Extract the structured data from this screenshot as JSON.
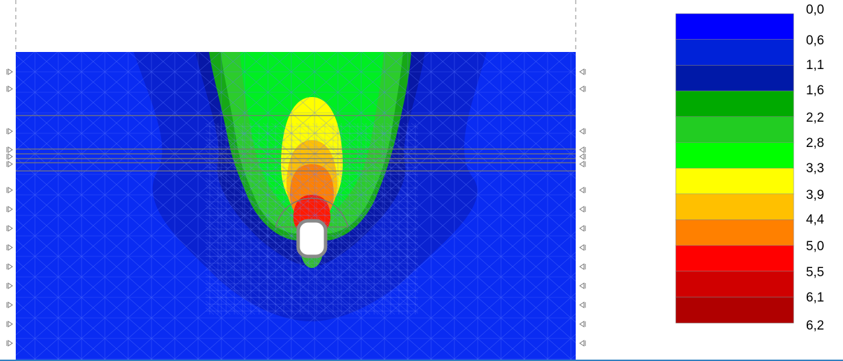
{
  "colors": {
    "background": "#ffffff",
    "soil_base": "#0b2cf0",
    "mesh_line": "#4f6cff",
    "layer_line": "#808080",
    "frame_line": "#2f7fbf"
  },
  "boundary_icons": [
    "fixed-support-left-icon",
    "fixed-support-right-icon"
  ],
  "legend": {
    "values": [
      "0,0",
      "0,6",
      "1,1",
      "1,6",
      "2,2",
      "2,8",
      "3,3",
      "3,9",
      "4,4",
      "5,0",
      "5,5",
      "6,1",
      "6,2"
    ],
    "colors": [
      "#0000ff",
      "#0022d8",
      "#0019a8",
      "#00aa00",
      "#22cc22",
      "#00ff00",
      "#ffff00",
      "#ffc000",
      "#ff8000",
      "#ff0000",
      "#d00000",
      "#b00000"
    ]
  }
}
